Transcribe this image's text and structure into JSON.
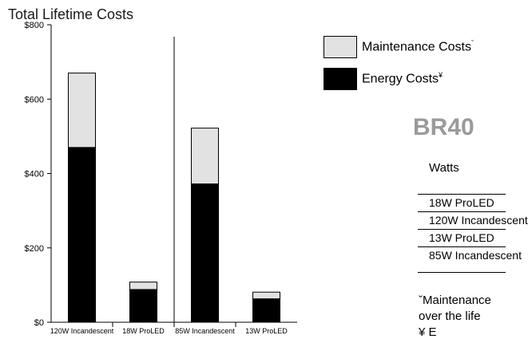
{
  "chart_data": {
    "type": "bar",
    "stacked": true,
    "title": "Total Lifetime Costs",
    "categories": [
      "120W Incandescent",
      "18W ProLED",
      "85W Incandescent",
      "13W ProLED"
    ],
    "series": [
      {
        "name": "Energy Costs",
        "marker": "¥",
        "color": "#000000",
        "values": [
          470,
          88,
          372,
          63
        ]
      },
      {
        "name": "Maintenance Costs",
        "marker": "ˇ",
        "color": "#e2e2e2",
        "values": [
          200,
          20,
          150,
          18
        ]
      }
    ],
    "yticks": [
      "$0",
      "$200",
      "$400",
      "$600",
      "$800"
    ],
    "ylim": [
      0,
      800
    ],
    "grid": false,
    "legend_position": "top-right"
  },
  "table": {
    "title": "BR40",
    "column_header": "Watts",
    "rows": [
      "18W ProLED",
      "120W Incandescent",
      "13W ProLED",
      "85W Incandescent"
    ]
  },
  "footnotes": {
    "line1": "ˇMaintenance",
    "line2": "over the life",
    "line3": "¥ E"
  },
  "colors": {
    "energy": "#000000",
    "maintenance": "#e2e2e2",
    "table_title": "#9a9a9a"
  }
}
